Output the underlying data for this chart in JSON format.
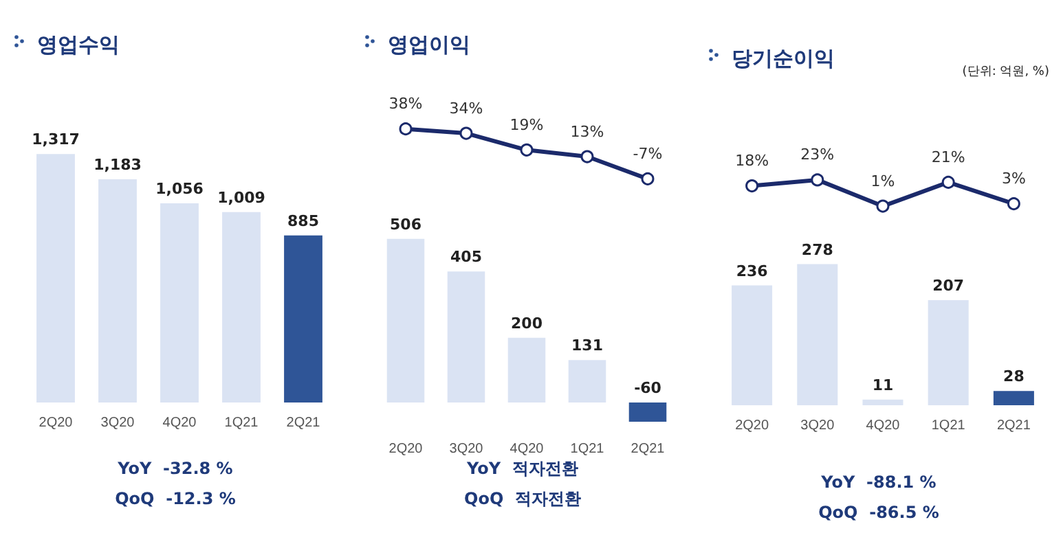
{
  "chart_data": [
    {
      "type": "bar",
      "title": "영업수익",
      "categories": [
        "2Q20",
        "3Q20",
        "4Q20",
        "1Q21",
        "2Q21"
      ],
      "series": [
        {
          "colors": [
            "#dae3f3",
            "#dae3f3",
            "#dae3f3",
            "#dae3f3",
            "#2f5597"
          ],
          "values": [
            1317,
            1183,
            1056,
            1009,
            885
          ],
          "value_labels": [
            "1,317",
            "1,183",
            "1,056",
            "1,009",
            "885"
          ]
        }
      ],
      "tick_labels": "x",
      "grid": false,
      "annotations": [
        "YoY  -32.8 %",
        "QoQ  -12.3 %"
      ]
    },
    {
      "type": "line",
      "title": "영업이익",
      "categories": [
        null,
        null,
        null,
        null,
        null
      ],
      "series": [
        {
          "color": "#1b2a6b",
          "values": [
            38,
            34,
            19,
            13,
            -7
          ],
          "value_labels": [
            "38%",
            "34%",
            "19%",
            "13%",
            "-7%"
          ]
        }
      ],
      "marker": "circle",
      "tick_labels": false,
      "grid": false
    },
    {
      "type": "bar",
      "categories": [
        "2Q20",
        "3Q20",
        "4Q20",
        "1Q21",
        "2Q21"
      ],
      "series": [
        {
          "colors": [
            "#dae3f3",
            "#dae3f3",
            "#dae3f3",
            "#dae3f3",
            "#2f5597"
          ],
          "values": [
            506,
            405,
            200,
            131,
            -60
          ],
          "value_labels": [
            "506",
            "405",
            "200",
            "131",
            "-60"
          ]
        }
      ],
      "tick_labels": "x",
      "grid": false,
      "annotations": [
        "YoY  적자전환",
        "QoQ  적자전환"
      ]
    },
    {
      "type": "line",
      "title": "당기순이익",
      "categories": [
        null,
        null,
        null,
        null,
        null
      ],
      "series": [
        {
          "color": "#1b2a6b",
          "values": [
            18,
            23,
            1,
            21,
            3
          ],
          "value_labels": [
            "18%",
            "23%",
            "1%",
            "21%",
            "3%"
          ]
        }
      ],
      "marker": "circle",
      "tick_labels": false,
      "grid": false,
      "annotations": [
        "(단위: 억원, %)"
      ]
    },
    {
      "type": "bar",
      "categories": [
        "2Q20",
        "3Q20",
        "4Q20",
        "1Q21",
        "2Q21"
      ],
      "series": [
        {
          "colors": [
            "#dae3f3",
            "#dae3f3",
            "#dae3f3",
            "#dae3f3",
            "#2f5597"
          ],
          "values": [
            236,
            278,
            11,
            207,
            28
          ],
          "value_labels": [
            "236",
            "278",
            "11",
            "207",
            "28"
          ]
        }
      ],
      "tick_labels": "x",
      "grid": false,
      "annotations": [
        "YoY  -88.1 %",
        "QoQ  -86.5 %"
      ]
    }
  ]
}
